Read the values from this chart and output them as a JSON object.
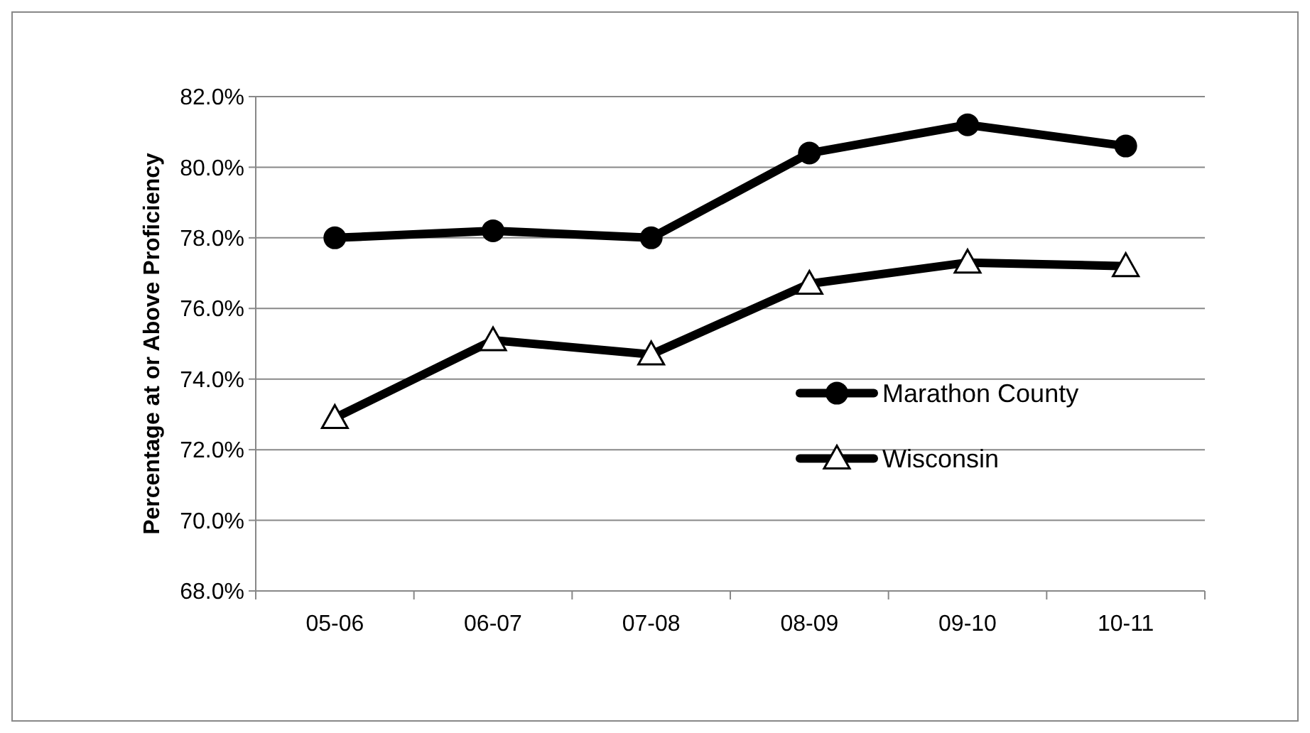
{
  "chart_data": {
    "type": "line",
    "ylabel": "Percentage at or Above Proficiency",
    "categories": [
      "05-06",
      "06-07",
      "07-08",
      "08-09",
      "09-10",
      "10-11"
    ],
    "series": [
      {
        "name": "Marathon County",
        "color": "#000000",
        "marker": "circle",
        "values": [
          78.0,
          78.2,
          78.0,
          80.4,
          81.2,
          80.6
        ]
      },
      {
        "name": "Wisconsin",
        "color": "#000000",
        "marker": "triangle",
        "values": [
          72.9,
          75.1,
          74.7,
          76.7,
          77.3,
          77.2
        ]
      }
    ],
    "ylim": [
      68,
      82
    ],
    "yticks": [
      {
        "value": 68,
        "label": "68.0%"
      },
      {
        "value": 70,
        "label": "70.0%"
      },
      {
        "value": 72,
        "label": "72.0%"
      },
      {
        "value": 74,
        "label": "74.0%"
      },
      {
        "value": 76,
        "label": "76.0%"
      },
      {
        "value": 78,
        "label": "78.0%"
      },
      {
        "value": 80,
        "label": "80.0%"
      },
      {
        "value": 82,
        "label": "82.0%"
      }
    ],
    "grid": "y",
    "legend": "right",
    "line_style": "solid"
  }
}
